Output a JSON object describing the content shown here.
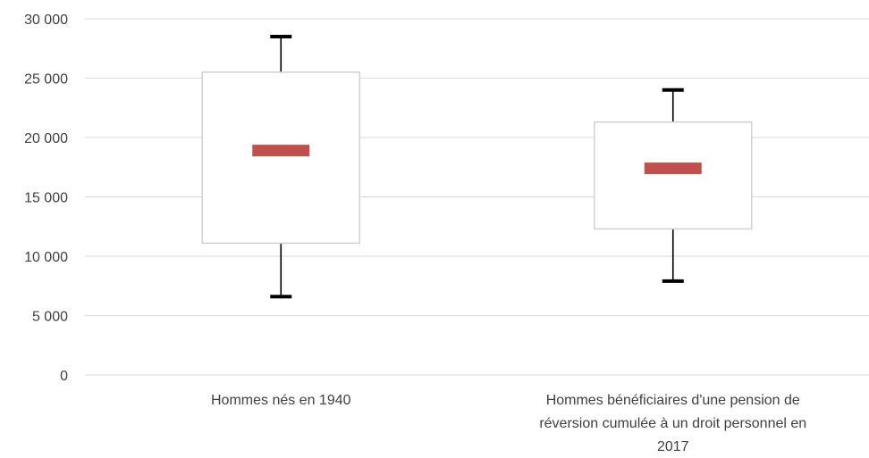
{
  "chart_data": {
    "type": "box",
    "title": "",
    "xlabel": "",
    "ylabel": "",
    "ylim": [
      0,
      30000
    ],
    "yticks": [
      0,
      5000,
      10000,
      15000,
      20000,
      25000,
      30000
    ],
    "ytick_labels": [
      "0",
      "5 000",
      "10 000",
      "15 000",
      "20 000",
      "25 000",
      "30 000"
    ],
    "grid": true,
    "categories": [
      [
        "Hommes nés en 1940"
      ],
      [
        "Hommes bénéficiaires d'une pension de",
        "réversion cumulée à un droit personnel en",
        "2017"
      ]
    ],
    "boxes": [
      {
        "min": 6600,
        "q1": 11100,
        "median": 18900,
        "q3": 25500,
        "max": 28500
      },
      {
        "min": 7900,
        "q1": 12300,
        "median": 17400,
        "q3": 21300,
        "max": 24000
      }
    ],
    "colors": {
      "median": "#c0504d",
      "whisker": "#000000",
      "box_border": "#d0d0d0",
      "grid": "#d9d9d9"
    }
  }
}
